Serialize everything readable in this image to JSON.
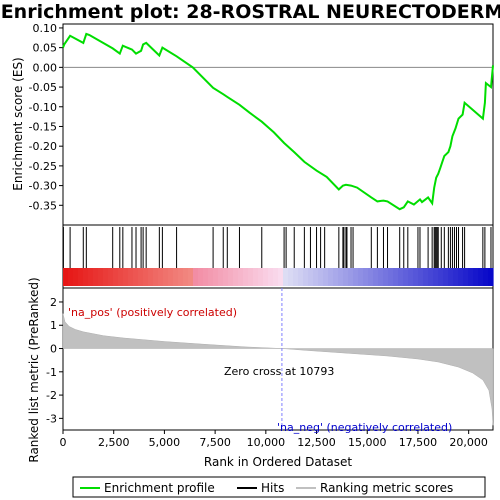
{
  "chart_data": {
    "type": "line",
    "title": "Enrichment plot: 28-ROSTRAL NEURECTODERM",
    "top_panel": {
      "ylabel": "Enrichment score (ES)",
      "ylim": [
        -0.4,
        0.11
      ],
      "yticks": [
        "0.10",
        "0.05",
        "0.00",
        "-0.05",
        "-0.10",
        "-0.15",
        "-0.20",
        "-0.25",
        "-0.30",
        "-0.35"
      ],
      "ytick_values": [
        0.1,
        0.05,
        0.0,
        -0.05,
        -0.1,
        -0.15,
        -0.2,
        -0.25,
        -0.3,
        -0.35
      ],
      "series": [
        {
          "name": "Enrichment profile",
          "color": "#00dd00",
          "x": [
            0,
            60,
            350,
            1000,
            1150,
            1300,
            2450,
            2800,
            2950,
            3400,
            3600,
            3850,
            3950,
            4100,
            4750,
            4900,
            5600,
            6400,
            7400,
            7900,
            8100,
            8700,
            9200,
            9800,
            10400,
            10900,
            11400,
            11900,
            12500,
            13000,
            13600,
            13800,
            13950,
            14200,
            14500,
            15200,
            15500,
            15800,
            16000,
            16600,
            16800,
            17000,
            17300,
            17600,
            17700,
            18000,
            18200,
            18300,
            18400,
            18500,
            18600,
            18700,
            18800,
            19000,
            19100,
            19200,
            19350,
            19500,
            19700,
            19800,
            20700,
            20800,
            20850,
            21100,
            21200
          ],
          "y": [
            0.05,
            0.058,
            0.08,
            0.062,
            0.085,
            0.082,
            0.048,
            0.035,
            0.055,
            0.045,
            0.035,
            0.042,
            0.058,
            0.062,
            0.03,
            0.05,
            0.028,
            0.0,
            -0.052,
            -0.068,
            -0.075,
            -0.095,
            -0.115,
            -0.138,
            -0.165,
            -0.192,
            -0.215,
            -0.24,
            -0.262,
            -0.278,
            -0.31,
            -0.3,
            -0.298,
            -0.3,
            -0.305,
            -0.33,
            -0.34,
            -0.338,
            -0.34,
            -0.36,
            -0.355,
            -0.34,
            -0.348,
            -0.335,
            -0.342,
            -0.33,
            -0.345,
            -0.305,
            -0.28,
            -0.27,
            -0.255,
            -0.24,
            -0.225,
            -0.215,
            -0.2,
            -0.175,
            -0.155,
            -0.13,
            -0.12,
            -0.09,
            -0.13,
            -0.09,
            -0.04,
            -0.05,
            0.005
          ]
        }
      ]
    },
    "hits": [
      20,
      350,
      1000,
      1150,
      2450,
      2800,
      2950,
      3400,
      3600,
      3850,
      3950,
      4100,
      4750,
      4900,
      5600,
      7400,
      7900,
      8100,
      8700,
      9800,
      10900,
      11000,
      11400,
      11900,
      12200,
      12500,
      12700,
      12900,
      13600,
      13800,
      13850,
      13950,
      14000,
      14200,
      14300,
      15200,
      15500,
      15800,
      16000,
      16600,
      16800,
      17000,
      17500,
      17600,
      18000,
      18200,
      18300,
      18350,
      18400,
      18450,
      18500,
      18650,
      18800,
      19000,
      19100,
      19200,
      19300,
      19400,
      19500,
      19700,
      19800,
      20700,
      20800,
      21100
    ],
    "bottom_panel": {
      "ylabel": "Ranked list metric (PreRanked)",
      "xlabel": "Rank in Ordered Dataset",
      "ylim": [
        -3.5,
        2.6
      ],
      "yticks": [
        "2",
        "1",
        "0",
        "-1",
        "-2",
        "-3"
      ],
      "ytick_values": [
        2,
        1,
        0,
        -1,
        -2,
        -3
      ],
      "xticks": [
        "0",
        "2,500",
        "5,000",
        "7,500",
        "10,000",
        "12,500",
        "15,000",
        "17,500",
        "20,000"
      ],
      "xtick_values": [
        0,
        2500,
        5000,
        7500,
        10000,
        12500,
        15000,
        17500,
        20000
      ],
      "xlim": [
        0,
        21200
      ],
      "metric_curve": {
        "x": [
          0,
          100,
          300,
          600,
          1000,
          2000,
          3000,
          5000,
          7000,
          9000,
          10793,
          12000,
          14000,
          16000,
          17500,
          18500,
          19500,
          20200,
          20700,
          21000,
          21150,
          21200
        ],
        "y": [
          1.5,
          1.15,
          0.95,
          0.82,
          0.72,
          0.55,
          0.45,
          0.3,
          0.18,
          0.07,
          0.0,
          -0.08,
          -0.2,
          -0.32,
          -0.45,
          -0.58,
          -0.8,
          -1.05,
          -1.35,
          -1.8,
          -2.6,
          -3.3
        ]
      },
      "zero_cross_label": "Zero cross at 10793",
      "zero_cross": 10793,
      "pos_label": "'na_pos' (positively correlated)",
      "neg_label": "'na_neg' (negatively correlated)"
    },
    "legend": [
      {
        "label": "Enrichment profile",
        "color": "#00dd00"
      },
      {
        "label": "Hits",
        "color": "#000000"
      },
      {
        "label": "Ranking metric scores",
        "color": "#c0c0c0"
      }
    ]
  }
}
